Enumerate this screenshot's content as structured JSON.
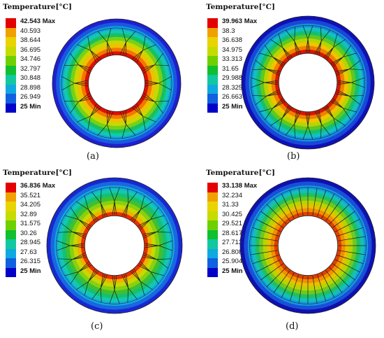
{
  "figure": {
    "panels": [
      {
        "id": "a",
        "title": "Temperature[°C]",
        "caption": "(a)",
        "legend_labels": [
          "42.543 Max",
          "40.593",
          "38.644",
          "36.695",
          "34.746",
          "32.797",
          "30.848",
          "28.898",
          "26.949",
          "25 Min"
        ],
        "legend_colors": [
          "#e30000",
          "#f0a000",
          "#e8d400",
          "#c6dc00",
          "#6ed000",
          "#10c030",
          "#12c8a0",
          "#10a8e0",
          "#1060e0",
          "#0000c8"
        ],
        "ring_colors": [
          "#1f1fd0",
          "#1858e0",
          "#14a0e0",
          "#12c8b0",
          "#18c060",
          "#78d018",
          "#c8d800",
          "#f0c000",
          "#f07800",
          "#e01000"
        ],
        "spoke_count": 14,
        "spoke_style": "branched"
      },
      {
        "id": "b",
        "title": "Temperature[°C]",
        "caption": "(b)",
        "legend_labels": [
          "39.963 Max",
          "38.3",
          "36.638",
          "34.975",
          "33.313",
          "31.65",
          "29.988",
          "28.325",
          "26.663",
          "25 Min"
        ],
        "legend_colors": [
          "#e30000",
          "#f0a000",
          "#e8d400",
          "#c6dc00",
          "#6ed000",
          "#10c030",
          "#12c8a0",
          "#10a8e0",
          "#1060e0",
          "#0000c8"
        ],
        "ring_colors": [
          "#1010b8",
          "#1848d8",
          "#1490e0",
          "#12c0c0",
          "#14c070",
          "#60c820",
          "#b8d400",
          "#f0c400",
          "#f08000",
          "#d81800"
        ],
        "spoke_count": 20,
        "spoke_style": "branched"
      },
      {
        "id": "c",
        "title": "Temperature[°C]",
        "caption": "(c)",
        "legend_labels": [
          "36.836 Max",
          "35.521",
          "34.205",
          "32.89",
          "31.575",
          "30.26",
          "28.945",
          "27.63",
          "26.315",
          "25 Min"
        ],
        "legend_colors": [
          "#e30000",
          "#f0a000",
          "#e8d400",
          "#c6dc00",
          "#6ed000",
          "#10c030",
          "#12c8a0",
          "#10a8e0",
          "#1060e0",
          "#0000c8"
        ],
        "ring_colors": [
          "#1828d0",
          "#1868e0",
          "#14a8e0",
          "#12c8b0",
          "#16c070",
          "#40c030",
          "#88d010",
          "#c8d800",
          "#f0b000",
          "#e83000"
        ],
        "spoke_count": 20,
        "spoke_style": "branched"
      },
      {
        "id": "d",
        "title": "Temperature[°C]",
        "caption": "(d)",
        "legend_labels": [
          "33.138 Max",
          "32.234",
          "31.33",
          "30.425",
          "29.521",
          "28.617",
          "27.713",
          "26.808",
          "25.904",
          "25 Min"
        ],
        "legend_colors": [
          "#e30000",
          "#f0a000",
          "#e8d400",
          "#c6dc00",
          "#6ed000",
          "#10c030",
          "#12c8a0",
          "#10a8e0",
          "#1060e0",
          "#0000c8"
        ],
        "ring_colors": [
          "#1010b0",
          "#1850d8",
          "#1498e0",
          "#12c0b8",
          "#20c060",
          "#70c820",
          "#b8d400",
          "#e8c000",
          "#f09000",
          "#e04000"
        ],
        "spoke_count": 40,
        "spoke_style": "straight"
      }
    ]
  }
}
